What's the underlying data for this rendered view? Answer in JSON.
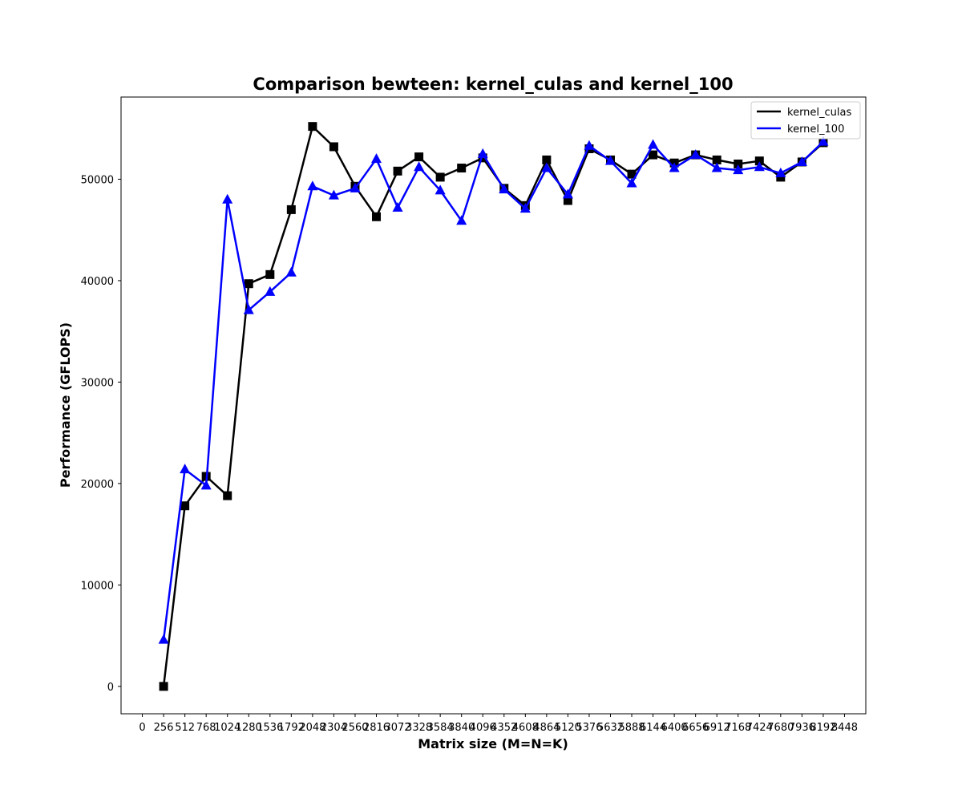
{
  "chart_data": {
    "type": "line",
    "title": "Comparison bewteen: kernel_culas and kernel_100",
    "xlabel": "Matrix size (M=N=K)",
    "ylabel": "Performance (GFLOPS)",
    "xlim": [
      -256,
      8704
    ],
    "ylim": [
      -2700,
      58100
    ],
    "xticks": [
      0,
      256,
      512,
      768,
      1024,
      1280,
      1536,
      1792,
      2048,
      2304,
      2560,
      2816,
      3072,
      3328,
      3584,
      3840,
      4096,
      4352,
      4608,
      4864,
      5120,
      5376,
      5632,
      5888,
      6144,
      6400,
      6656,
      6912,
      7168,
      7424,
      7680,
      7936,
      8192,
      8448
    ],
    "yticks": [
      0,
      10000,
      20000,
      30000,
      40000,
      50000
    ],
    "grid": false,
    "legend_position": "top-right",
    "x": [
      256,
      512,
      768,
      1024,
      1280,
      1536,
      1792,
      2048,
      2304,
      2560,
      2816,
      3072,
      3328,
      3584,
      3840,
      4096,
      4352,
      4608,
      4864,
      5120,
      5376,
      5632,
      5888,
      6144,
      6400,
      6656,
      6912,
      7168,
      7424,
      7680,
      7936,
      8192
    ],
    "series": [
      {
        "name": "kernel_culas",
        "color": "#000000",
        "marker": "square",
        "values": [
          0,
          17800,
          20700,
          18800,
          39700,
          40600,
          47000,
          55200,
          53200,
          49300,
          46300,
          50800,
          52200,
          50200,
          51100,
          52100,
          49100,
          47400,
          51900,
          47900,
          53000,
          51900,
          50500,
          52400,
          51600,
          52400,
          51900,
          51500,
          51800,
          50200,
          51700,
          53600
        ]
      },
      {
        "name": "kernel_100",
        "color": "#0000ff",
        "marker": "triangle-up",
        "values": [
          4600,
          21400,
          19800,
          48000,
          37100,
          38900,
          40800,
          49300,
          48400,
          49100,
          52000,
          47200,
          51200,
          48900,
          45900,
          52500,
          49000,
          47100,
          51100,
          48500,
          53300,
          51800,
          49600,
          53400,
          51100,
          52400,
          51100,
          50900,
          51200,
          50600,
          51700,
          53700
        ]
      }
    ]
  }
}
